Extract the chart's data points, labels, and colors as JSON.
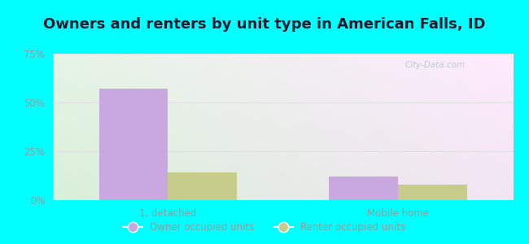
{
  "title": "Owners and renters by unit type in American Falls, ID",
  "categories": [
    "1, detached",
    "Mobile home"
  ],
  "owner_values": [
    57,
    12
  ],
  "renter_values": [
    14,
    8
  ],
  "owner_color": "#c9a8e0",
  "renter_color": "#c8cc8a",
  "ylim": [
    0,
    75
  ],
  "yticks": [
    0,
    25,
    50,
    75
  ],
  "ytick_labels": [
    "0%",
    "25%",
    "50%",
    "75%"
  ],
  "bar_width": 0.3,
  "background_color": "#00ffff",
  "legend_owner": "Owner occupied units",
  "legend_renter": "Renter occupied units",
  "watermark": "City-Data.com",
  "title_fontsize": 13,
  "tick_label_color": "#999999",
  "grid_color": "#e0e0e0",
  "title_color": "#1a1a2e"
}
